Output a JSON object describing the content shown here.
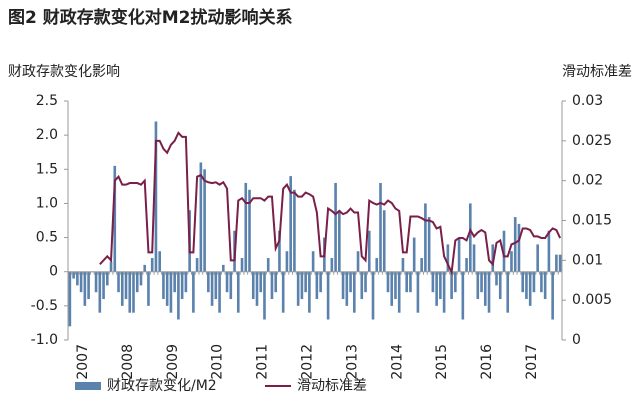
{
  "chart_data": {
    "type": "bar_line",
    "title": "图2  财政存款变化对M2扰动影响关系",
    "y_label": "财政存款变化影响",
    "y2_label": "滑动标准差",
    "categories": [
      "2007",
      null,
      null,
      null,
      null,
      null,
      null,
      null,
      null,
      null,
      null,
      null,
      "2008",
      null,
      null,
      null,
      null,
      null,
      null,
      null,
      null,
      null,
      null,
      null,
      "2009",
      null,
      null,
      null,
      null,
      null,
      null,
      null,
      null,
      null,
      null,
      null,
      "2010",
      null,
      null,
      null,
      null,
      null,
      null,
      null,
      null,
      null,
      null,
      null,
      "2011",
      null,
      null,
      null,
      null,
      null,
      null,
      null,
      null,
      null,
      null,
      null,
      "2012",
      null,
      null,
      null,
      null,
      null,
      null,
      null,
      null,
      null,
      null,
      null,
      "2013",
      null,
      null,
      null,
      null,
      null,
      null,
      null,
      null,
      null,
      null,
      null,
      "2014",
      null,
      null,
      null,
      null,
      null,
      null,
      null,
      null,
      null,
      null,
      null,
      "2015",
      null,
      null,
      null,
      null,
      null,
      null,
      null,
      null,
      null,
      null,
      null,
      "2016",
      null,
      null,
      null,
      null,
      null,
      null,
      null,
      null,
      null,
      null,
      null,
      "2017",
      null,
      null,
      null,
      null,
      null,
      null,
      null,
      null,
      null,
      null,
      null
    ],
    "series": [
      {
        "name": "财政存款变化/M2",
        "color": "#5a82ad",
        "type": "bar",
        "values": [
          -0.8,
          -0.1,
          -0.2,
          -0.3,
          -0.5,
          -0.4,
          0.0,
          -0.3,
          -0.6,
          -0.4,
          -0.2,
          0.15,
          1.55,
          -0.3,
          -0.5,
          -0.4,
          -0.6,
          -0.6,
          -0.3,
          -0.2,
          0.1,
          -0.5,
          0.2,
          2.2,
          0.3,
          -0.4,
          -0.5,
          -0.6,
          -0.3,
          -0.7,
          -0.4,
          -0.3,
          0.9,
          -0.6,
          0.2,
          1.6,
          1.5,
          -0.3,
          -0.5,
          -0.4,
          -0.6,
          0.1,
          -0.3,
          -0.4,
          0.6,
          -0.6,
          0.2,
          1.3,
          1.2,
          -0.4,
          -0.5,
          -0.3,
          -0.7,
          0.2,
          -0.4,
          -0.3,
          0.6,
          -0.6,
          0.3,
          1.4,
          1.2,
          -0.5,
          -0.4,
          -0.3,
          -0.6,
          0.3,
          -0.4,
          -0.3,
          0.5,
          -0.7,
          0.2,
          1.3,
          0.9,
          -0.4,
          -0.5,
          -0.3,
          -0.6,
          0.3,
          -0.4,
          -0.3,
          0.6,
          -0.7,
          0.2,
          1.3,
          0.9,
          -0.3,
          -0.5,
          -0.4,
          -0.6,
          0.2,
          -0.3,
          -0.3,
          0.5,
          -0.6,
          0.2,
          1.0,
          0.8,
          -0.3,
          -0.5,
          -0.4,
          -0.6,
          0.4,
          -0.4,
          -0.3,
          0.5,
          -0.7,
          0.2,
          1.0,
          0.4,
          -0.4,
          -0.3,
          -0.5,
          -0.6,
          0.4,
          -0.2,
          -0.4,
          0.6,
          -0.6,
          0.3,
          0.8,
          0.7,
          -0.3,
          -0.4,
          -0.5,
          -0.3,
          0.4,
          -0.3,
          -0.4,
          0.6,
          -0.7,
          0.25,
          0.25
        ]
      },
      {
        "name": "滑动标准差",
        "color": "#7a1f48",
        "type": "line",
        "axis": "y2",
        "values": [
          null,
          null,
          null,
          null,
          null,
          null,
          null,
          null,
          0.0095,
          0.01,
          0.0105,
          0.01,
          0.02,
          0.0205,
          0.0195,
          0.0195,
          0.0197,
          0.0197,
          0.0197,
          0.0195,
          0.02,
          0.011,
          0.011,
          0.025,
          0.025,
          0.024,
          0.0235,
          0.0245,
          0.025,
          0.026,
          0.0255,
          0.0255,
          0.011,
          0.011,
          0.0205,
          0.0207,
          0.02,
          0.0198,
          0.0197,
          0.0198,
          0.0195,
          0.0198,
          0.019,
          0.01,
          0.01,
          0.0175,
          0.0178,
          0.0172,
          0.0172,
          0.0178,
          0.0178,
          0.0178,
          0.0175,
          0.018,
          0.018,
          0.0115,
          0.0125,
          0.019,
          0.0195,
          0.0185,
          0.0185,
          0.018,
          0.018,
          0.0185,
          0.0183,
          0.018,
          0.016,
          0.0105,
          0.0105,
          0.0165,
          0.0162,
          0.0158,
          0.0162,
          0.0158,
          0.016,
          0.0165,
          0.016,
          0.016,
          0.0105,
          0.01,
          0.0175,
          0.0172,
          0.017,
          0.0172,
          0.017,
          0.0175,
          0.0172,
          0.0165,
          0.0162,
          0.011,
          0.011,
          0.0155,
          0.0155,
          0.0155,
          0.0153,
          0.015,
          0.015,
          0.0148,
          0.014,
          0.0142,
          0.0105,
          0.0095,
          0.0085,
          0.0125,
          0.0128,
          0.0128,
          0.0125,
          0.0138,
          0.013,
          0.0135,
          0.0138,
          0.0135,
          0.01,
          0.0095,
          0.0122,
          0.0125,
          0.0105,
          0.0105,
          0.012,
          0.0122,
          0.0125,
          0.014,
          0.014,
          0.0138,
          0.013,
          0.013,
          0.0128,
          0.0128,
          0.0135,
          0.014,
          0.0138,
          0.0128
        ]
      }
    ],
    "ylim": [
      -1.0,
      2.5
    ],
    "yticks": [
      {
        "value": -1.0,
        "label": "-1.0"
      },
      {
        "value": -0.5,
        "label": "-0.5"
      },
      0,
      {
        "value": 0.5,
        "label": "0.5"
      },
      {
        "value": 1.0,
        "label": "1.0"
      },
      {
        "value": 1.5,
        "label": "1.5"
      },
      {
        "value": 2.0,
        "label": "2.0"
      },
      {
        "value": 2.5,
        "label": "2.5"
      }
    ],
    "y2lim": [
      0,
      0.03
    ],
    "y2ticks": [
      0,
      0.005,
      0.01,
      0.015,
      0.02,
      0.025,
      0.03
    ],
    "legend": "bottom"
  }
}
